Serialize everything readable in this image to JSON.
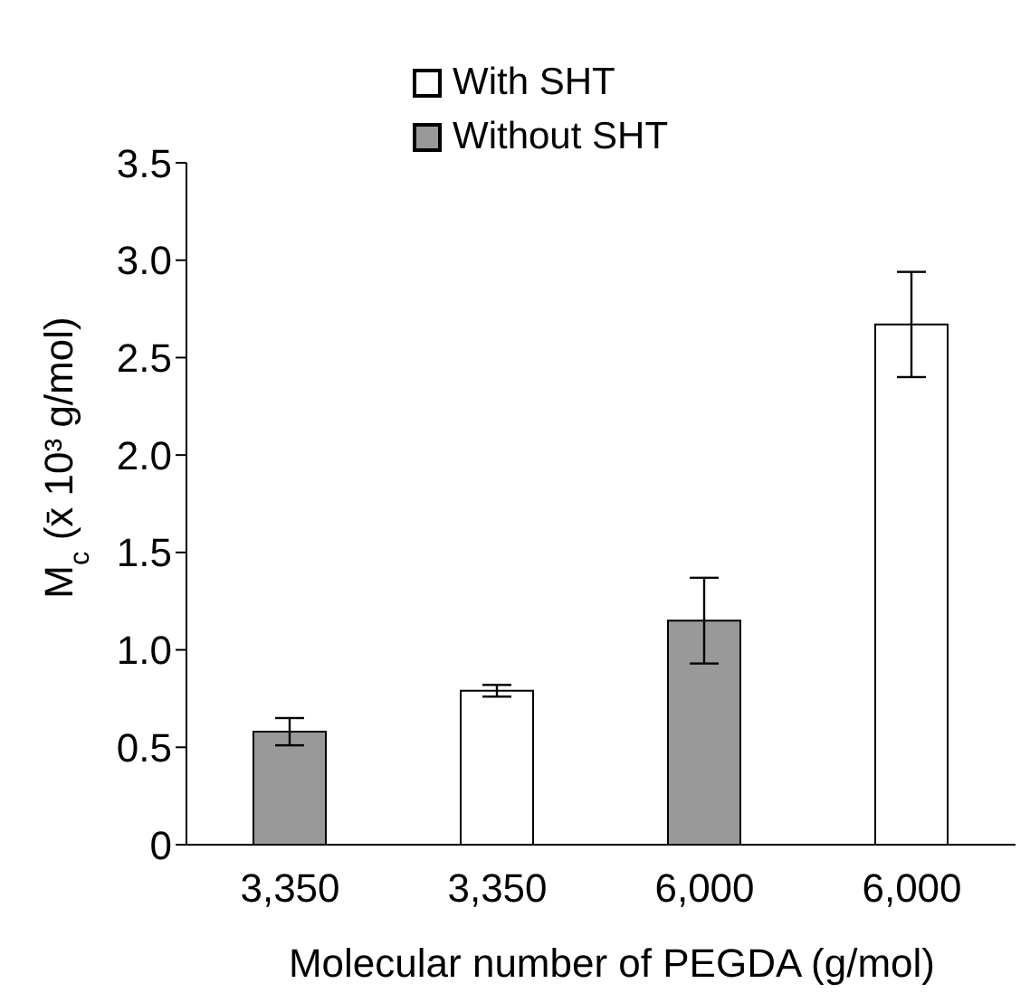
{
  "chart_data": {
    "type": "bar",
    "xlabel": "Molecular number of PEGDA (g/mol)",
    "ylabel": "M$_{c}$ (x̄ 10³ g/mol)",
    "categories": [
      "3,350",
      "3,350",
      "6,000",
      "6,000"
    ],
    "stacked": true,
    "series": [
      {
        "name": "With SHT",
        "color": "#ffffff",
        "values": [
          null,
          0.79,
          null,
          2.67
        ],
        "errors": [
          null,
          0.03,
          null,
          0.27
        ]
      },
      {
        "name": "Without SHT",
        "color": "#999999",
        "values": [
          0.58,
          null,
          1.15,
          null
        ],
        "errors": [
          0.07,
          null,
          0.22,
          null
        ]
      }
    ],
    "ylim": [
      0,
      3.5
    ],
    "yticks": [
      0,
      {
        "value": 0.5,
        "label": "0.5"
      },
      {
        "value": 1,
        "label": "1.0"
      },
      {
        "value": 1.5,
        "label": "1.5"
      },
      {
        "value": 2,
        "label": "2.0"
      },
      {
        "value": 2.5,
        "label": "2.5"
      },
      {
        "value": 3,
        "label": "3.0"
      },
      {
        "value": 3.5,
        "label": "3.5"
      }
    ],
    "grid": false,
    "legend": "top"
  }
}
